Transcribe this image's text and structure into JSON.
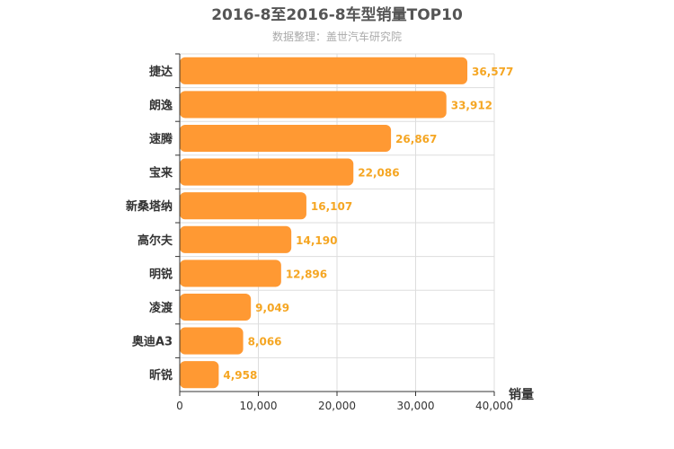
{
  "chart_data": {
    "type": "bar",
    "orientation": "horizontal",
    "title": "2016-8至2016-8车型销量TOP10",
    "subtitle": "数据整理：盖世汽车研究院",
    "xlabel": "销量",
    "ylabel": "",
    "xlim": [
      0,
      40000
    ],
    "ticks": [
      0,
      10000,
      20000,
      30000,
      40000
    ],
    "tick_labels": [
      "0",
      "10,000",
      "20,000",
      "30,000",
      "40,000"
    ],
    "grid": true,
    "bar_color": "#ff9933",
    "label_color": "#f5a623",
    "categories": [
      "捷达",
      "朗逸",
      "速腾",
      "宝来",
      "新桑塔纳",
      "高尔夫",
      "明锐",
      "凌渡",
      "奥迪A3",
      "昕锐"
    ],
    "values": [
      36577,
      33912,
      26867,
      22086,
      16107,
      14190,
      12896,
      9049,
      8066,
      4958
    ],
    "value_labels": [
      "36,577",
      "33,912",
      "26,867",
      "22,086",
      "16,107",
      "14,190",
      "12,896",
      "9,049",
      "8,066",
      "4,958"
    ]
  }
}
